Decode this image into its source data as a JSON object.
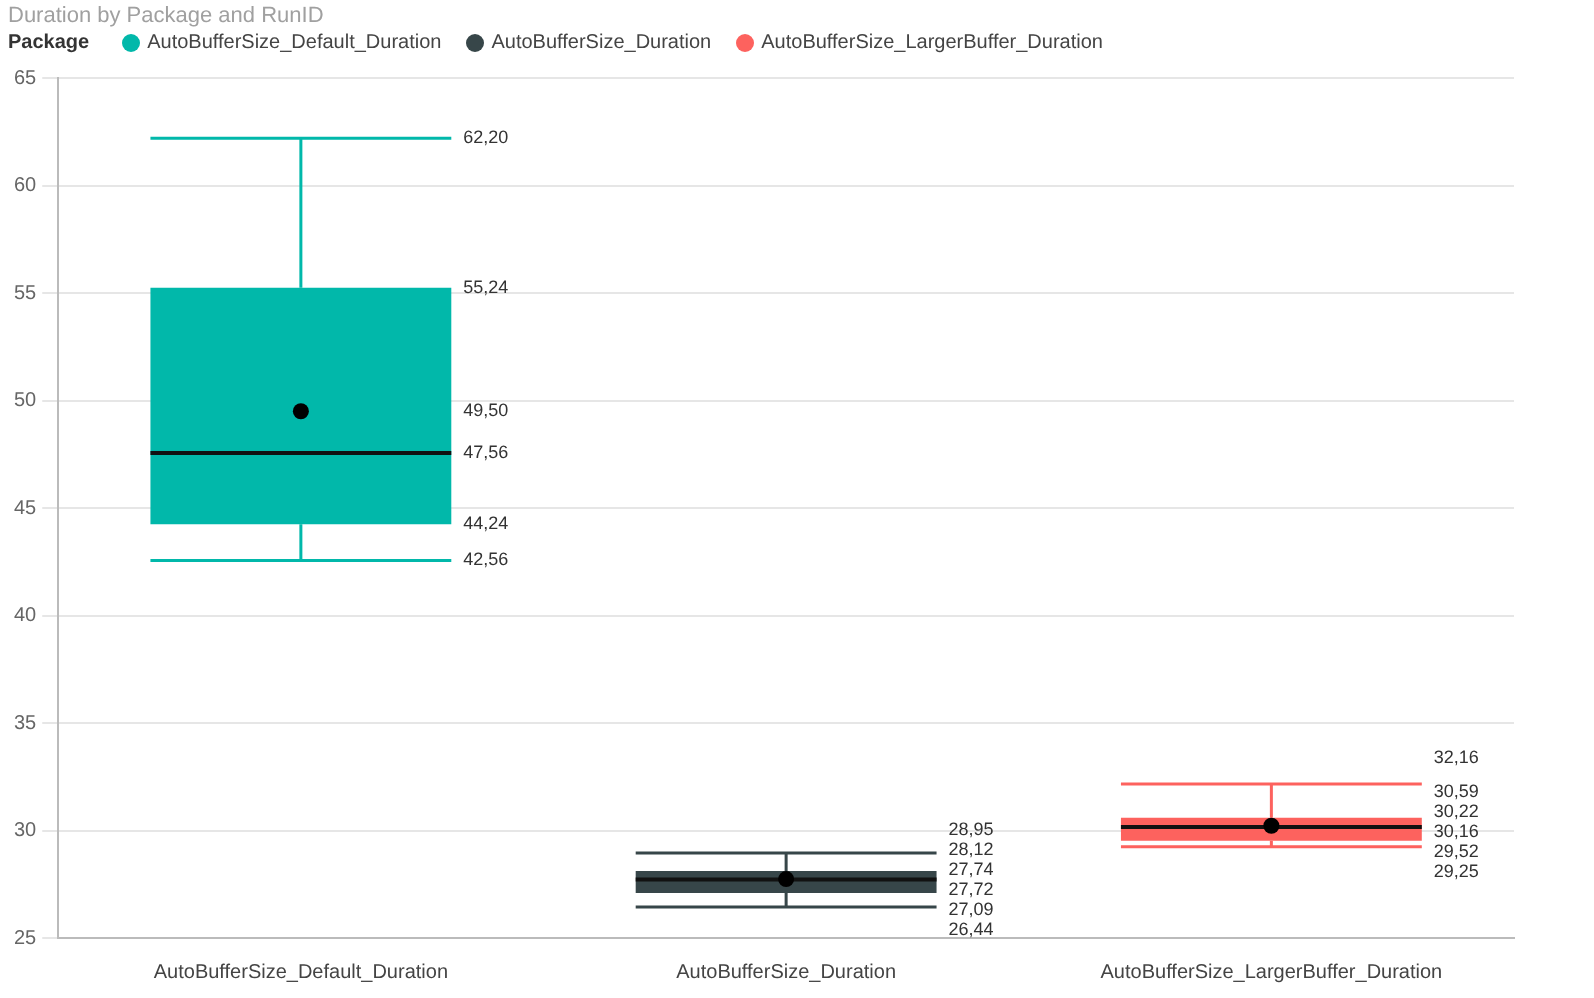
{
  "chart_data": {
    "type": "box",
    "title": "Duration by Package and RunID",
    "legend_title": "Package",
    "legend": "top left",
    "categories": [
      "AutoBufferSize_Default_Duration",
      "AutoBufferSize_Duration",
      "AutoBufferSize_LargerBuffer_Duration"
    ],
    "series": [
      {
        "name": "AutoBufferSize_Default_Duration",
        "color": "#01b8aa",
        "boxes": [
          {
            "low": 42.56,
            "q1": 44.24,
            "median": 47.56,
            "q3": 55.24,
            "high": 62.2,
            "mean": 49.5
          },
          null,
          null
        ],
        "value_labels": [
          [
            "62,20",
            "55,24",
            "49,50",
            "47,56",
            "44,24",
            "42,56"
          ],
          null,
          null
        ]
      },
      {
        "name": "AutoBufferSize_Duration",
        "color": "#374649",
        "boxes": [
          null,
          {
            "low": 26.44,
            "q1": 27.09,
            "median": 27.72,
            "q3": 28.12,
            "high": 28.95,
            "mean": 27.74
          },
          null
        ],
        "value_labels": [
          null,
          [
            "28,95",
            "28,12",
            "27,74",
            "27,72",
            "27,09",
            "26,44"
          ],
          null
        ]
      },
      {
        "name": "AutoBufferSize_LargerBuffer_Duration",
        "color": "#fd625e",
        "boxes": [
          null,
          null,
          {
            "low": 29.25,
            "q1": 29.52,
            "median": 30.16,
            "q3": 30.59,
            "high": 32.16,
            "mean": 30.22
          }
        ],
        "value_labels": [
          null,
          null,
          [
            "32,16",
            "30,59",
            "30,22",
            "30,16",
            "29,52",
            "29,25"
          ]
        ]
      }
    ],
    "ylim": [
      25,
      65
    ],
    "yticks": [
      25,
      30,
      35,
      40,
      45,
      50,
      55,
      60,
      65
    ],
    "grid": "y"
  }
}
